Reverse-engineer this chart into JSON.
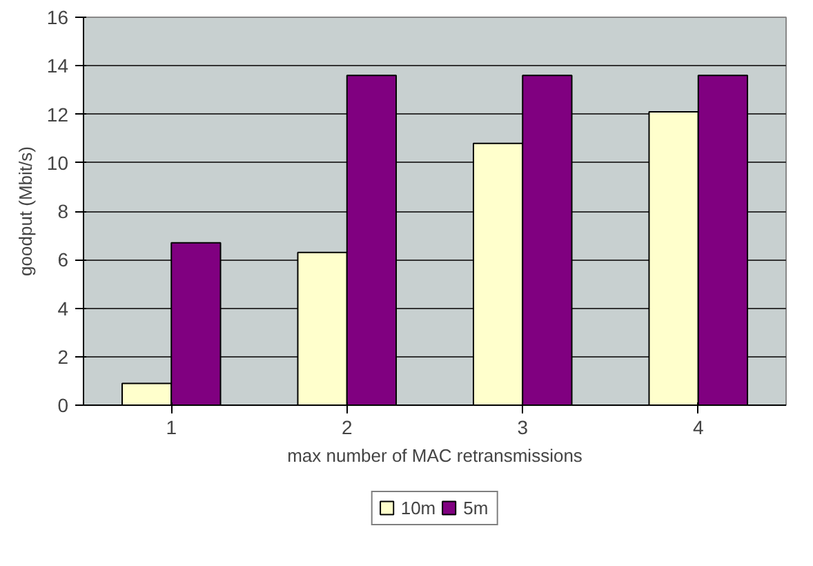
{
  "chart_data": {
    "type": "bar",
    "xlabel": "max number of MAC retransmissions",
    "ylabel": "goodput (Mbit/s)",
    "categories": [
      "1",
      "2",
      "3",
      "4"
    ],
    "series": [
      {
        "name": "10m",
        "color": "#ffffcc",
        "values": [
          0.9,
          6.3,
          10.8,
          12.1
        ]
      },
      {
        "name": "5m",
        "color": "#800080",
        "values": [
          6.7,
          13.6,
          13.6,
          13.6
        ]
      }
    ],
    "ylim": [
      0,
      16
    ],
    "yticks": [
      0,
      2,
      4,
      6,
      8,
      10,
      12,
      14,
      16
    ],
    "grid": "y",
    "legend": "bottom"
  }
}
